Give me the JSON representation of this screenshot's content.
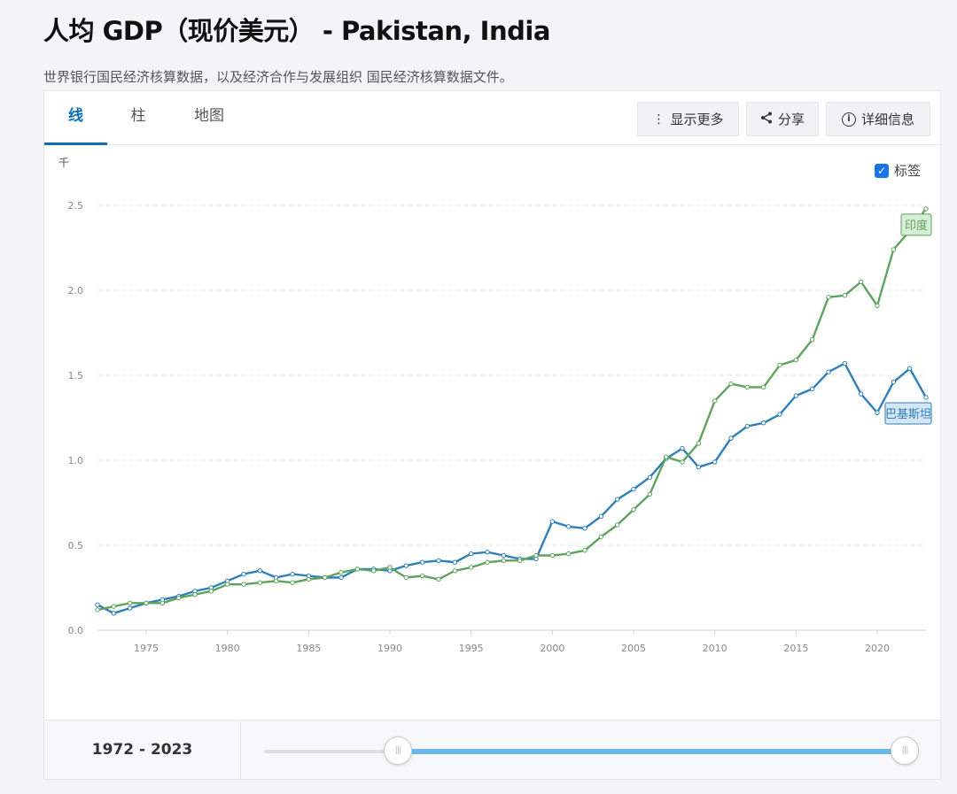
{
  "page": {
    "title": "人均 GDP（现价美元） - Pakistan, India",
    "subtitle": "世界银行国民经济核算数据，以及经济合作与发展组织 国民经济核算数据文件。"
  },
  "tabs": [
    "线",
    "柱",
    "地图"
  ],
  "toolbar": {
    "more_label": "显示更多",
    "share_label": "分享",
    "details_label": "详细信息"
  },
  "labels_toggle": {
    "label": "标签",
    "checked": true
  },
  "range": {
    "label": "1972 - 2023"
  },
  "colors": {
    "pakistan": "#2f7fb8",
    "india": "#5ea35e",
    "accent": "#0b6fb5",
    "slider": "#6ab9ea"
  },
  "chart_data": {
    "type": "line",
    "unit_label": "千",
    "ylim": [
      0,
      2.5
    ],
    "yticks": [
      "0.0",
      "0.5",
      "1.0",
      "1.5",
      "2.0",
      "2.5"
    ],
    "xticks": [
      "1975",
      "1980",
      "1985",
      "1990",
      "1995",
      "2000",
      "2005",
      "2010",
      "2015",
      "2020"
    ],
    "xlim": [
      1972,
      2023
    ],
    "grid": true,
    "x": [
      1972,
      1973,
      1974,
      1975,
      1976,
      1977,
      1978,
      1979,
      1980,
      1981,
      1982,
      1983,
      1984,
      1985,
      1986,
      1987,
      1988,
      1989,
      1990,
      1991,
      1992,
      1993,
      1994,
      1995,
      1996,
      1997,
      1998,
      1999,
      2000,
      2001,
      2002,
      2003,
      2004,
      2005,
      2006,
      2007,
      2008,
      2009,
      2010,
      2011,
      2012,
      2013,
      2014,
      2015,
      2016,
      2017,
      2018,
      2019,
      2020,
      2021,
      2022,
      2023
    ],
    "series": [
      {
        "name": "巴基斯坦",
        "color": "#2f7fb8",
        "values": [
          0.15,
          0.1,
          0.13,
          0.16,
          0.18,
          0.2,
          0.23,
          0.25,
          0.29,
          0.33,
          0.35,
          0.31,
          0.33,
          0.32,
          0.31,
          0.31,
          0.36,
          0.36,
          0.35,
          0.38,
          0.4,
          0.41,
          0.4,
          0.45,
          0.46,
          0.44,
          0.42,
          0.42,
          0.64,
          0.61,
          0.6,
          0.67,
          0.77,
          0.83,
          0.9,
          1.01,
          1.07,
          0.96,
          0.99,
          1.13,
          1.2,
          1.22,
          1.27,
          1.38,
          1.42,
          1.52,
          1.57,
          1.39,
          1.28,
          1.46,
          1.54,
          1.37
        ]
      },
      {
        "name": "印度",
        "color": "#5ea35e",
        "values": [
          0.12,
          0.14,
          0.16,
          0.16,
          0.16,
          0.19,
          0.21,
          0.23,
          0.27,
          0.27,
          0.28,
          0.29,
          0.28,
          0.3,
          0.31,
          0.34,
          0.36,
          0.35,
          0.37,
          0.31,
          0.32,
          0.3,
          0.35,
          0.37,
          0.4,
          0.41,
          0.41,
          0.44,
          0.44,
          0.45,
          0.47,
          0.55,
          0.62,
          0.71,
          0.8,
          1.02,
          0.99,
          1.1,
          1.35,
          1.45,
          1.43,
          1.43,
          1.56,
          1.59,
          1.71,
          1.96,
          1.97,
          2.05,
          1.91,
          2.24,
          2.35,
          2.48
        ]
      }
    ]
  }
}
